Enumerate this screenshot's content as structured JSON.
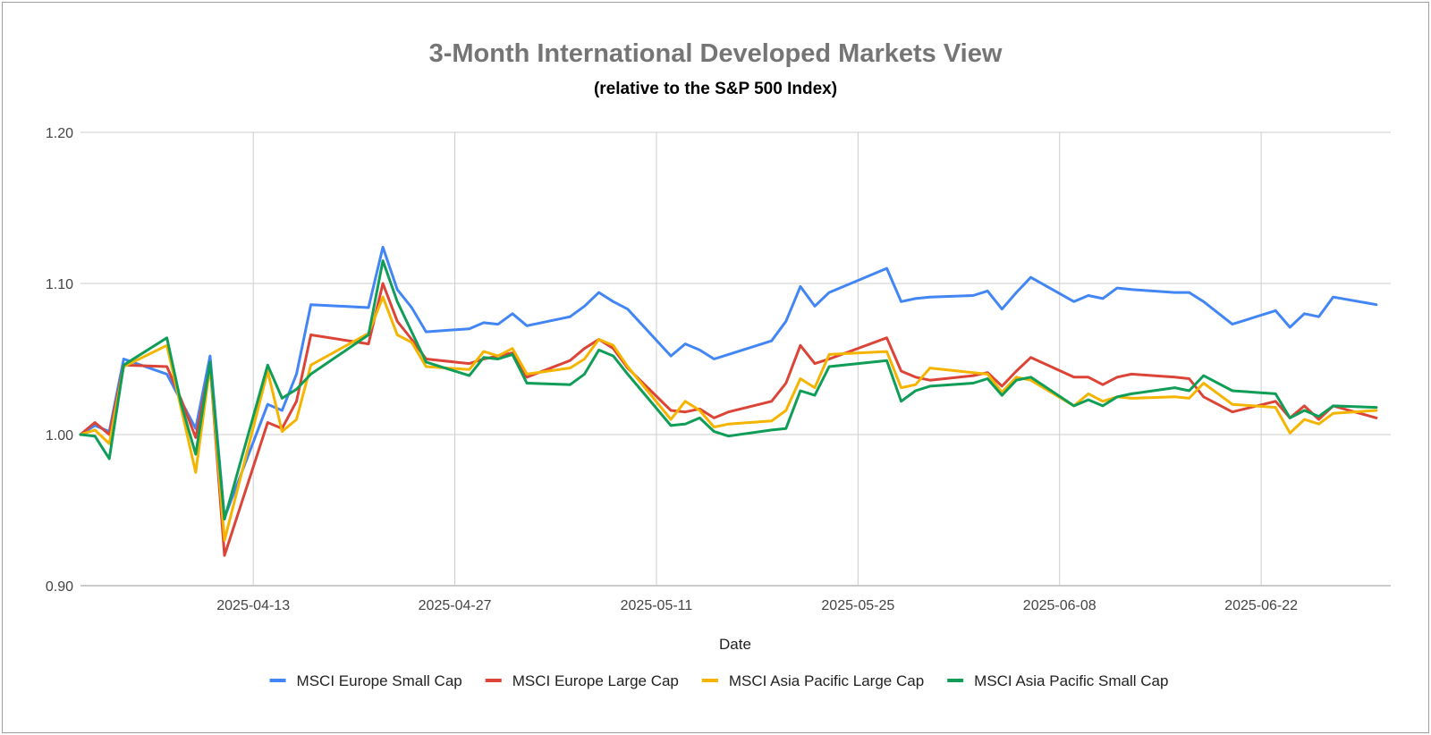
{
  "chart_data": {
    "type": "line",
    "title": "3-Month International Developed Markets View",
    "subtitle": "(relative to the S&P 500 Index)",
    "xlabel": "Date",
    "ylabel": "",
    "ylim": [
      0.9,
      1.2
    ],
    "yticks": [
      "1.20",
      "1.10",
      "1.00",
      "0.90"
    ],
    "ytick_values": [
      1.2,
      1.1,
      1.0,
      0.9
    ],
    "xticks": [
      "2025-04-13",
      "2025-04-27",
      "2025-05-11",
      "2025-05-25",
      "2025-06-08",
      "2025-06-22"
    ],
    "xlim": [
      "2025-04-01",
      "2025-07-01"
    ],
    "grid": true,
    "legend_position": "bottom",
    "x": [
      "2025-04-01",
      "2025-04-02",
      "2025-04-03",
      "2025-04-04",
      "2025-04-07",
      "2025-04-08",
      "2025-04-09",
      "2025-04-10",
      "2025-04-11",
      "2025-04-14",
      "2025-04-15",
      "2025-04-16",
      "2025-04-17",
      "2025-04-21",
      "2025-04-22",
      "2025-04-23",
      "2025-04-24",
      "2025-04-25",
      "2025-04-28",
      "2025-04-29",
      "2025-04-30",
      "2025-05-01",
      "2025-05-02",
      "2025-05-05",
      "2025-05-06",
      "2025-05-07",
      "2025-05-08",
      "2025-05-09",
      "2025-05-12",
      "2025-05-13",
      "2025-05-14",
      "2025-05-15",
      "2025-05-16",
      "2025-05-19",
      "2025-05-20",
      "2025-05-21",
      "2025-05-22",
      "2025-05-23",
      "2025-05-27",
      "2025-05-28",
      "2025-05-29",
      "2025-05-30",
      "2025-06-02",
      "2025-06-03",
      "2025-06-04",
      "2025-06-05",
      "2025-06-06",
      "2025-06-09",
      "2025-06-10",
      "2025-06-11",
      "2025-06-12",
      "2025-06-13",
      "2025-06-16",
      "2025-06-17",
      "2025-06-18",
      "2025-06-20",
      "2025-06-23",
      "2025-06-24",
      "2025-06-25",
      "2025-06-26",
      "2025-06-27",
      "2025-06-30"
    ],
    "series": [
      {
        "name": "MSCI Europe Small Cap",
        "color": "#4285f4",
        "values": [
          1.0,
          1.006,
          1.002,
          1.05,
          1.04,
          1.022,
          1.004,
          1.052,
          0.945,
          1.02,
          1.016,
          1.04,
          1.086,
          1.084,
          1.124,
          1.096,
          1.084,
          1.068,
          1.07,
          1.074,
          1.073,
          1.08,
          1.072,
          1.078,
          1.085,
          1.094,
          1.088,
          1.083,
          1.052,
          1.06,
          1.056,
          1.05,
          1.053,
          1.062,
          1.075,
          1.098,
          1.085,
          1.094,
          1.11,
          1.088,
          1.09,
          1.091,
          1.092,
          1.095,
          1.083,
          1.094,
          1.104,
          1.088,
          1.092,
          1.09,
          1.097,
          1.096,
          1.094,
          1.094,
          1.088,
          1.073,
          1.082,
          1.071,
          1.08,
          1.078,
          1.091,
          1.086
        ]
      },
      {
        "name": "MSCI Europe Large Cap",
        "color": "#db4437",
        "values": [
          1.0,
          1.008,
          1.0,
          1.046,
          1.045,
          1.023,
          0.998,
          1.046,
          0.92,
          1.008,
          1.004,
          1.022,
          1.066,
          1.06,
          1.1,
          1.075,
          1.063,
          1.05,
          1.047,
          1.05,
          1.052,
          1.054,
          1.038,
          1.049,
          1.057,
          1.063,
          1.057,
          1.044,
          1.016,
          1.015,
          1.017,
          1.011,
          1.015,
          1.022,
          1.034,
          1.059,
          1.047,
          1.05,
          1.064,
          1.042,
          1.038,
          1.036,
          1.039,
          1.041,
          1.032,
          1.042,
          1.051,
          1.038,
          1.038,
          1.033,
          1.038,
          1.04,
          1.038,
          1.037,
          1.025,
          1.015,
          1.022,
          1.011,
          1.019,
          1.01,
          1.019,
          1.011
        ]
      },
      {
        "name": "MSCI Asia Pacific Large Cap",
        "color": "#f4b400",
        "values": [
          1.0,
          1.003,
          0.994,
          1.045,
          1.059,
          1.017,
          0.975,
          1.046,
          0.93,
          1.042,
          1.002,
          1.01,
          1.046,
          1.067,
          1.091,
          1.066,
          1.061,
          1.045,
          1.043,
          1.055,
          1.052,
          1.057,
          1.04,
          1.044,
          1.05,
          1.063,
          1.059,
          1.045,
          1.01,
          1.022,
          1.016,
          1.005,
          1.007,
          1.009,
          1.016,
          1.037,
          1.031,
          1.053,
          1.055,
          1.031,
          1.033,
          1.044,
          1.041,
          1.04,
          1.028,
          1.038,
          1.036,
          1.019,
          1.027,
          1.022,
          1.025,
          1.024,
          1.025,
          1.024,
          1.034,
          1.02,
          1.018,
          1.001,
          1.01,
          1.007,
          1.014,
          1.016
        ]
      },
      {
        "name": "MSCI Asia Pacific Small Cap",
        "color": "#0f9d58",
        "values": [
          1.0,
          0.999,
          0.984,
          1.046,
          1.064,
          1.02,
          0.987,
          1.048,
          0.944,
          1.046,
          1.024,
          1.03,
          1.04,
          1.066,
          1.115,
          1.088,
          1.068,
          1.048,
          1.039,
          1.051,
          1.05,
          1.053,
          1.034,
          1.033,
          1.04,
          1.056,
          1.052,
          1.04,
          1.006,
          1.007,
          1.011,
          1.002,
          0.999,
          1.003,
          1.004,
          1.029,
          1.026,
          1.045,
          1.049,
          1.022,
          1.029,
          1.032,
          1.034,
          1.037,
          1.026,
          1.036,
          1.038,
          1.019,
          1.023,
          1.019,
          1.025,
          1.027,
          1.031,
          1.029,
          1.039,
          1.029,
          1.027,
          1.011,
          1.016,
          1.012,
          1.019,
          1.018
        ]
      }
    ]
  }
}
